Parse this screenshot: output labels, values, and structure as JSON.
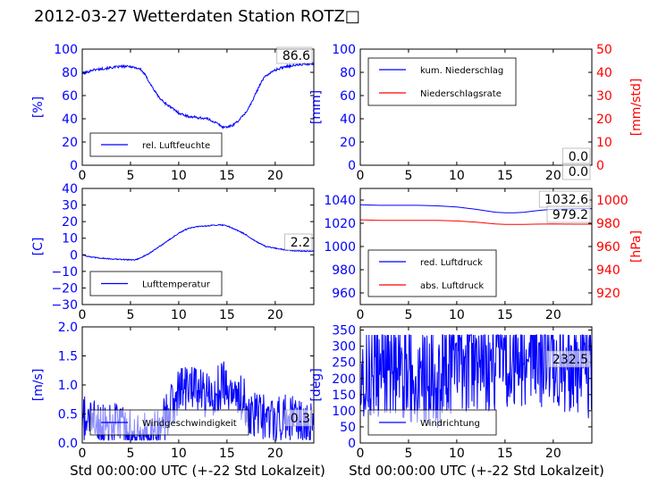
{
  "figure": {
    "title": "2012-03-27 Wetterdaten Station ROTZ□",
    "xlabel": "Std 00:00:00 UTC (+-22 Std Lokalzeit)"
  },
  "colors": {
    "left_axis": "#0000ff",
    "right_axis": "#ff0000",
    "series_blue": "#0000ff",
    "series_red": "#ff0000"
  },
  "chart_data": [
    {
      "id": "humidity",
      "type": "line",
      "ylabel": "[%]",
      "xlim": [
        0,
        24
      ],
      "ylim": [
        0,
        100
      ],
      "xticks": [
        "0",
        "5",
        "10",
        "15",
        "20"
      ],
      "yticks": [
        "0",
        "20",
        "40",
        "60",
        "80",
        "100"
      ],
      "legend_location": "lower-left",
      "series": [
        {
          "name": "rel. Luftfeuchte",
          "color": "#0000ff",
          "noise": 1,
          "x": [
            0,
            0.5,
            1,
            2,
            3,
            4,
            5,
            6,
            6.5,
            7,
            7.5,
            8,
            8.5,
            9,
            9.5,
            10,
            11,
            12,
            13,
            14,
            14.5,
            15,
            15.5,
            16,
            16.5,
            17,
            17.5,
            18,
            18.5,
            19,
            20,
            21,
            22,
            23,
            24
          ],
          "y": [
            79,
            80,
            82,
            83,
            84,
            85,
            85,
            83,
            78,
            71,
            64,
            58,
            54,
            51,
            48,
            45,
            42,
            41,
            40,
            36,
            33,
            33,
            34,
            37,
            41,
            46,
            53,
            62,
            71,
            77,
            82,
            85,
            86,
            87,
            87
          ]
        }
      ],
      "annotations": [
        {
          "text": "86.6"
        }
      ]
    },
    {
      "id": "precipitation",
      "type": "line",
      "ylabel": "[mm]",
      "ylabel_right": "[mm/std]",
      "xlim": [
        0,
        24
      ],
      "ylim": [
        0,
        100
      ],
      "ylim_right": [
        0,
        50
      ],
      "xticks": [
        "0",
        "5",
        "10",
        "15",
        "20"
      ],
      "yticks": [
        "0",
        "20",
        "40",
        "60",
        "80",
        "100"
      ],
      "yticks_right": [
        "0",
        "10",
        "20",
        "30",
        "40",
        "50"
      ],
      "legend_location": "upper-left",
      "series": [
        {
          "name": "kum. Niederschlag",
          "color": "#0000ff",
          "noise": 0,
          "x": [
            0,
            24
          ],
          "y": [
            0,
            0
          ]
        },
        {
          "name": "Niederschlagsrate",
          "color": "#ff0000",
          "noise": 0,
          "axis": "right",
          "x": [
            0,
            24
          ],
          "y": [
            0,
            0
          ]
        }
      ],
      "annotations": [
        {
          "text": "0.0"
        },
        {
          "text": "0.0"
        }
      ]
    },
    {
      "id": "temperature",
      "type": "line",
      "ylabel": "[C]",
      "xlim": [
        0,
        24
      ],
      "ylim": [
        -30,
        40
      ],
      "xticks": [
        "0",
        "5",
        "10",
        "15",
        "20"
      ],
      "yticks": [
        "−30",
        "−20",
        "−10",
        "0",
        "10",
        "20",
        "30",
        "40"
      ],
      "legend_location": "lower-left",
      "series": [
        {
          "name": "Lufttemperatur",
          "color": "#0000ff",
          "noise": 0.3,
          "x": [
            0,
            1,
            2,
            3,
            4,
            5,
            5.5,
            6,
            7,
            8,
            9,
            10,
            11,
            12,
            13,
            14,
            14.5,
            15,
            16,
            17,
            18,
            19,
            20,
            21,
            22,
            23,
            24
          ],
          "y": [
            0,
            -1.5,
            -2,
            -2.5,
            -2.8,
            -3,
            -3,
            -2,
            1,
            5,
            9,
            13,
            16,
            17,
            17.5,
            18,
            18,
            17.5,
            15,
            12,
            8,
            5,
            4,
            3,
            2.5,
            2.2,
            2.2
          ]
        }
      ],
      "annotations": [
        {
          "text": "2.2"
        }
      ]
    },
    {
      "id": "pressure",
      "type": "line",
      "ylabel_right": "[hPa]",
      "xlim": [
        0,
        24
      ],
      "ylim": [
        950,
        1050
      ],
      "ylim_right": [
        910,
        1010
      ],
      "xticks": [
        "0",
        "5",
        "10",
        "15",
        "20"
      ],
      "yticks": [
        "960",
        "980",
        "1000",
        "1020",
        "1040"
      ],
      "yticks_right": [
        "920",
        "940",
        "960",
        "980",
        "1000"
      ],
      "legend_location": "lower-left",
      "series": [
        {
          "name": "red. Luftdruck",
          "color": "#0000ff",
          "noise": 0,
          "x": [
            0,
            2,
            4,
            6,
            8,
            10,
            12,
            14,
            15,
            16,
            17,
            18,
            19,
            20,
            22,
            24
          ],
          "y": [
            1036,
            1035.5,
            1035.5,
            1035.5,
            1035,
            1034,
            1032,
            1029.5,
            1029,
            1029,
            1029.5,
            1030.5,
            1031.5,
            1032,
            1032.5,
            1032.6
          ]
        },
        {
          "name": "abs. Luftdruck",
          "color": "#ff0000",
          "noise": 0,
          "axis": "right",
          "x": [
            0,
            2,
            4,
            6,
            8,
            10,
            12,
            14,
            15,
            16,
            17,
            18,
            20,
            22,
            24
          ],
          "y": [
            983,
            982.5,
            982.5,
            982.5,
            982.5,
            982,
            981,
            979.5,
            979,
            979,
            979,
            979.2,
            979.5,
            979.2,
            979.2
          ]
        }
      ],
      "annotations": [
        {
          "text": "1032.6"
        },
        {
          "text": "979.2"
        }
      ]
    },
    {
      "id": "windspeed",
      "type": "line",
      "ylabel": "[m/s]",
      "xlim": [
        0,
        24
      ],
      "ylim": [
        0,
        2
      ],
      "xticks": [
        "0",
        "5",
        "10",
        "15",
        "20"
      ],
      "yticks": [
        "0.0",
        "0.5",
        "1.0",
        "1.5",
        "2.0"
      ],
      "legend_location": "lower-left",
      "series": [
        {
          "name": "Windgeschwindigkeit",
          "color": "#0000ff",
          "noise": 0.42,
          "x": [
            0,
            2,
            4,
            5,
            6,
            7,
            8,
            9,
            10,
            11,
            12,
            13,
            14,
            15,
            16,
            17,
            17.5,
            18,
            19,
            20,
            21,
            22,
            23,
            24
          ],
          "y": [
            0.4,
            0.35,
            0.3,
            0.2,
            0.15,
            0.2,
            0.3,
            0.5,
            0.9,
            1.0,
            0.9,
            0.8,
            0.95,
            1.0,
            0.9,
            0.7,
            0.5,
            0.5,
            0.4,
            0.4,
            0.45,
            0.4,
            0.3,
            0.3
          ]
        }
      ],
      "annotations": [
        {
          "text": "0.3"
        }
      ]
    },
    {
      "id": "winddirection",
      "type": "line",
      "ylabel": "[deg]",
      "xlim": [
        0,
        24
      ],
      "ylim": [
        0,
        360
      ],
      "xticks": [
        "0",
        "5",
        "10",
        "15",
        "20"
      ],
      "yticks": [
        "0",
        "50",
        "100",
        "150",
        "200",
        "250",
        "300",
        "350"
      ],
      "legend_location": "lower-left",
      "series": [
        {
          "name": "Windrichtung",
          "color": "#0000ff",
          "noise": 160,
          "x": [
            0,
            2,
            4,
            6,
            8,
            10,
            12,
            14,
            16,
            18,
            20,
            22,
            24
          ],
          "y": [
            230,
            220,
            240,
            210,
            200,
            250,
            260,
            250,
            270,
            280,
            250,
            250,
            232
          ]
        }
      ],
      "annotations": [
        {
          "text": "232.5"
        }
      ]
    }
  ]
}
